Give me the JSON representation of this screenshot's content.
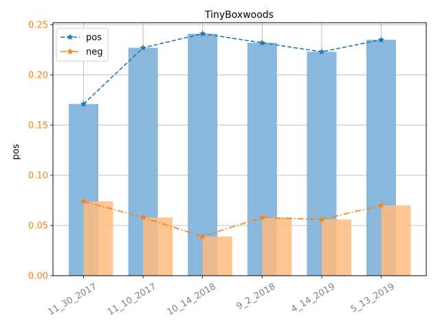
{
  "chart_data": {
    "type": "bar",
    "title": "TinyBoxwoods",
    "xlabel": "",
    "ylabel": "pos",
    "ylim": [
      0,
      0.252
    ],
    "yticks": [
      "0.00",
      "0.05",
      "0.10",
      "0.15",
      "0.20",
      "0.25"
    ],
    "ytick_values": [
      0,
      0.05,
      0.1,
      0.15,
      0.2,
      0.25
    ],
    "categories": [
      "11_30_2017",
      "11_10_2017",
      "10_14_2018",
      "9_2_2018",
      "4_14_2019",
      "5_13_2019"
    ],
    "grid": true,
    "legend_position": "top-left",
    "series": [
      {
        "name": "pos",
        "values": [
          0.171,
          0.227,
          0.241,
          0.232,
          0.223,
          0.235
        ],
        "color": "#1f77b4",
        "bar_color": "#8ab8dc",
        "line_style": "dashed",
        "marker": "star"
      },
      {
        "name": "neg",
        "values": [
          0.074,
          0.058,
          0.039,
          0.058,
          0.056,
          0.07
        ],
        "color": "#ff7f0e",
        "bar_color": "#ffbb80",
        "line_style": "dashdot",
        "marker": "star"
      }
    ]
  }
}
